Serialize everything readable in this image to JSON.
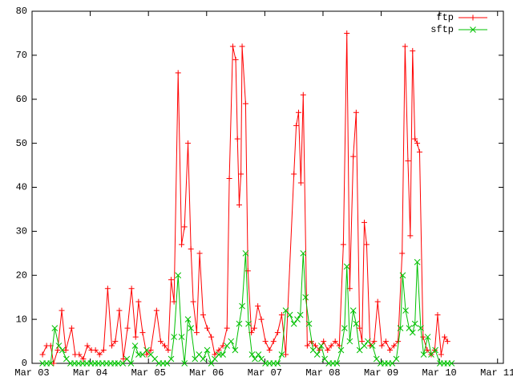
{
  "chart_data": {
    "type": "line",
    "xlim": [
      3,
      11.1
    ],
    "ylim": [
      0,
      80
    ],
    "xticks": [
      {
        "value": 3,
        "label": "Mar 03"
      },
      {
        "value": 4,
        "label": "Mar 04"
      },
      {
        "value": 5,
        "label": "Mar 05"
      },
      {
        "value": 6,
        "label": "Mar 06"
      },
      {
        "value": 7,
        "label": "Mar 07"
      },
      {
        "value": 8,
        "label": "Mar 08"
      },
      {
        "value": 9,
        "label": "Mar 09"
      },
      {
        "value": 10,
        "label": "Mar 10"
      },
      {
        "value": 11,
        "label": "Mar 11"
      }
    ],
    "yticks": [
      0,
      10,
      20,
      30,
      40,
      50,
      60,
      70,
      80
    ],
    "legend": "top right",
    "series": [
      {
        "name": "ftp",
        "color": "#ff0000",
        "marker": "plus",
        "x": [
          3.18,
          3.25,
          3.32,
          3.37,
          3.44,
          3.51,
          3.58,
          3.68,
          3.74,
          3.81,
          3.88,
          3.95,
          4.02,
          4.09,
          4.16,
          4.23,
          4.3,
          4.37,
          4.43,
          4.5,
          4.57,
          4.64,
          4.71,
          4.78,
          4.83,
          4.9,
          4.97,
          5.04,
          5.14,
          5.21,
          5.28,
          5.34,
          5.39,
          5.44,
          5.51,
          5.57,
          5.62,
          5.68,
          5.73,
          5.77,
          5.83,
          5.88,
          5.94,
          6.01,
          6.08,
          6.14,
          6.21,
          6.28,
          6.35,
          6.39,
          6.45,
          6.5,
          6.53,
          6.56,
          6.59,
          6.61,
          6.67,
          6.71,
          6.77,
          6.82,
          6.88,
          6.94,
          7.01,
          7.08,
          7.15,
          7.22,
          7.29,
          7.36,
          7.5,
          7.54,
          7.58,
          7.62,
          7.66,
          7.73,
          7.8,
          7.87,
          7.94,
          8.01,
          8.08,
          8.14,
          8.21,
          8.28,
          8.35,
          8.41,
          8.46,
          8.52,
          8.57,
          8.63,
          8.67,
          8.71,
          8.75,
          8.81,
          8.88,
          8.94,
          9.01,
          9.08,
          9.15,
          9.22,
          9.29,
          9.36,
          9.41,
          9.46,
          9.5,
          9.54,
          9.58,
          9.62,
          9.66,
          9.72,
          9.79,
          9.86,
          9.92,
          9.97,
          10.03,
          10.09,
          10.14
        ],
        "values": [
          2,
          4,
          4,
          0,
          3,
          12,
          3,
          8,
          2,
          2,
          1,
          4,
          3,
          3,
          2,
          3,
          17,
          4,
          5,
          12,
          1,
          8,
          17,
          6,
          14,
          7,
          2,
          3,
          12,
          5,
          4,
          3,
          19,
          14,
          66,
          27,
          31,
          50,
          26,
          14,
          7,
          25,
          11,
          8,
          6,
          2,
          3,
          4,
          8,
          42,
          72,
          69,
          51,
          36,
          43,
          72,
          59,
          21,
          7,
          8,
          13,
          10,
          5,
          3,
          5,
          7,
          11,
          2,
          43,
          54,
          57,
          41,
          61,
          4,
          5,
          4,
          3,
          5,
          3,
          4,
          5,
          4,
          27,
          75,
          17,
          47,
          57,
          8,
          5,
          32,
          27,
          4,
          5,
          14,
          4,
          5,
          3,
          4,
          5,
          25,
          72,
          46,
          29,
          71,
          51,
          50,
          48,
          6,
          3,
          2,
          3,
          11,
          2,
          6,
          5
        ]
      },
      {
        "name": "sftp",
        "color": "#00c000",
        "marker": "cross",
        "x": [
          3.18,
          3.25,
          3.32,
          3.39,
          3.46,
          3.52,
          3.59,
          3.66,
          3.73,
          3.8,
          3.87,
          3.94,
          4.01,
          4.08,
          4.14,
          4.21,
          4.28,
          4.35,
          4.42,
          4.48,
          4.56,
          4.63,
          4.7,
          4.77,
          4.83,
          4.9,
          4.97,
          5.04,
          5.11,
          5.18,
          5.25,
          5.32,
          5.39,
          5.44,
          5.51,
          5.57,
          5.62,
          5.68,
          5.73,
          5.8,
          5.87,
          5.94,
          6.01,
          6.08,
          6.14,
          6.21,
          6.28,
          6.35,
          6.42,
          6.49,
          6.56,
          6.61,
          6.67,
          6.72,
          6.78,
          6.83,
          6.89,
          6.94,
          7.01,
          7.08,
          7.15,
          7.22,
          7.29,
          7.36,
          7.43,
          7.5,
          7.56,
          7.61,
          7.66,
          7.7,
          7.76,
          7.83,
          7.9,
          7.97,
          8.03,
          8.1,
          8.17,
          8.24,
          8.31,
          8.37,
          8.41,
          8.46,
          8.52,
          8.57,
          8.63,
          8.71,
          8.77,
          8.85,
          8.92,
          8.99,
          9.06,
          9.12,
          9.19,
          9.26,
          9.33,
          9.37,
          9.42,
          9.48,
          9.54,
          9.58,
          9.62,
          9.68,
          9.73,
          9.8,
          9.86,
          9.93,
          10.01,
          10.08,
          10.14,
          10.21
        ],
        "values": [
          0,
          0,
          0,
          8,
          4,
          3,
          1,
          0,
          0,
          0,
          0,
          0,
          0,
          0,
          0,
          0,
          0,
          0,
          0,
          0,
          0,
          1,
          0,
          4,
          2,
          2,
          3,
          2,
          1,
          0,
          0,
          0,
          1,
          6,
          20,
          6,
          0,
          10,
          8,
          1,
          2,
          1,
          3,
          0,
          1,
          2,
          2,
          4,
          5,
          3,
          9,
          13,
          25,
          9,
          2,
          1,
          2,
          1,
          0,
          0,
          0,
          0,
          2,
          12,
          11,
          9,
          10,
          11,
          25,
          15,
          9,
          3,
          2,
          4,
          1,
          0,
          0,
          0,
          3,
          8,
          22,
          5,
          12,
          9,
          3,
          4,
          5,
          4,
          1,
          0,
          0,
          0,
          0,
          1,
          8,
          20,
          12,
          8,
          7,
          9,
          23,
          8,
          2,
          6,
          2,
          3,
          0,
          0,
          0,
          0
        ]
      }
    ]
  }
}
